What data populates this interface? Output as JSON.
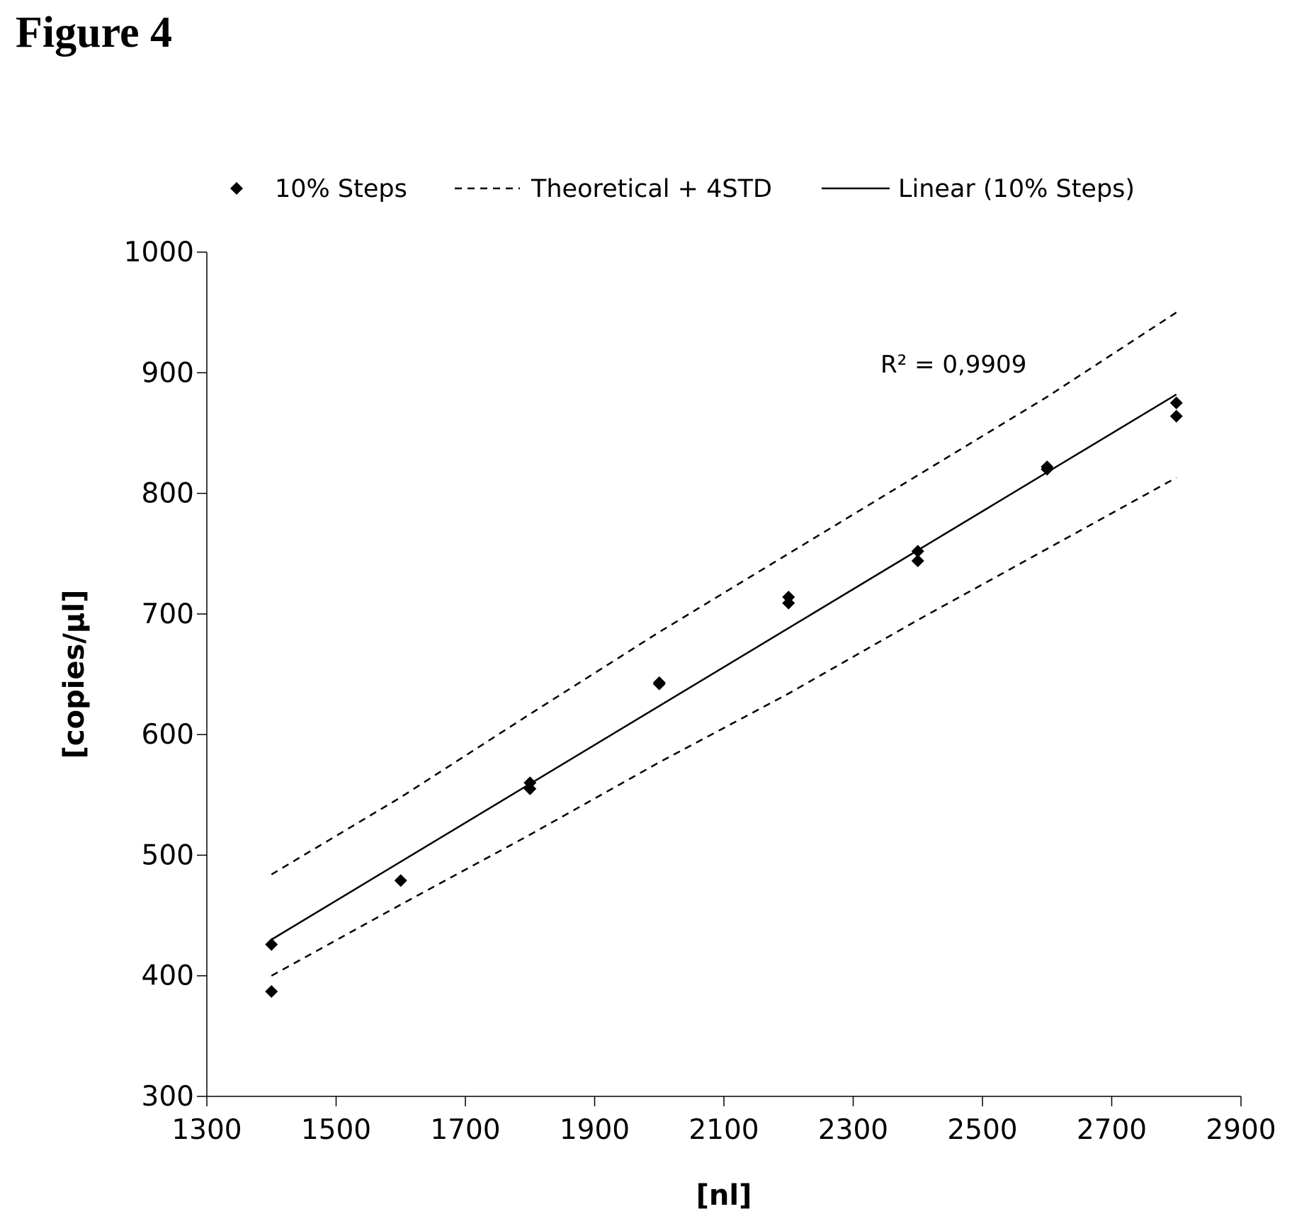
{
  "figure_title": "Figure 4",
  "chart_data": {
    "type": "scatter",
    "xlabel": "[nl]",
    "ylabel": "[copies/µl]",
    "xlim": [
      1300,
      2900
    ],
    "ylim": [
      300,
      1000
    ],
    "xticks": [
      1300,
      1500,
      1700,
      1900,
      2100,
      2300,
      2500,
      2700,
      2900
    ],
    "yticks": [
      300,
      400,
      500,
      600,
      700,
      800,
      900,
      1000
    ],
    "legend": {
      "position": "top",
      "entries": [
        "10% Steps",
        "Theoretical + 4STD",
        "Linear (10% Steps)"
      ]
    },
    "annotation": "R² = 0,9909",
    "series": [
      {
        "name": "10% Steps",
        "marker": "diamond",
        "points": [
          [
            1400,
            426
          ],
          [
            1400,
            387
          ],
          [
            1600,
            479
          ],
          [
            1800,
            560
          ],
          [
            1800,
            555
          ],
          [
            2000,
            643
          ],
          [
            2000,
            642
          ],
          [
            2200,
            714
          ],
          [
            2200,
            709
          ],
          [
            2400,
            752
          ],
          [
            2400,
            744
          ],
          [
            2600,
            822
          ],
          [
            2600,
            820
          ],
          [
            2800,
            875
          ],
          [
            2800,
            864
          ]
        ]
      },
      {
        "name": "Theoretical + 4STD",
        "style": "dashed",
        "upper": [
          [
            1400,
            484
          ],
          [
            1600,
            548
          ],
          [
            1800,
            617
          ],
          [
            2000,
            685
          ],
          [
            2200,
            750
          ],
          [
            2400,
            815
          ],
          [
            2600,
            880
          ],
          [
            2800,
            950
          ]
        ],
        "lower": [
          [
            1400,
            400
          ],
          [
            1600,
            459
          ],
          [
            1800,
            517
          ],
          [
            2000,
            577
          ],
          [
            2200,
            634
          ],
          [
            2400,
            695
          ],
          [
            2600,
            754
          ],
          [
            2800,
            813
          ]
        ]
      },
      {
        "name": "Linear (10% Steps)",
        "style": "solid",
        "points": [
          [
            1400,
            430
          ],
          [
            2800,
            882
          ]
        ]
      }
    ]
  }
}
